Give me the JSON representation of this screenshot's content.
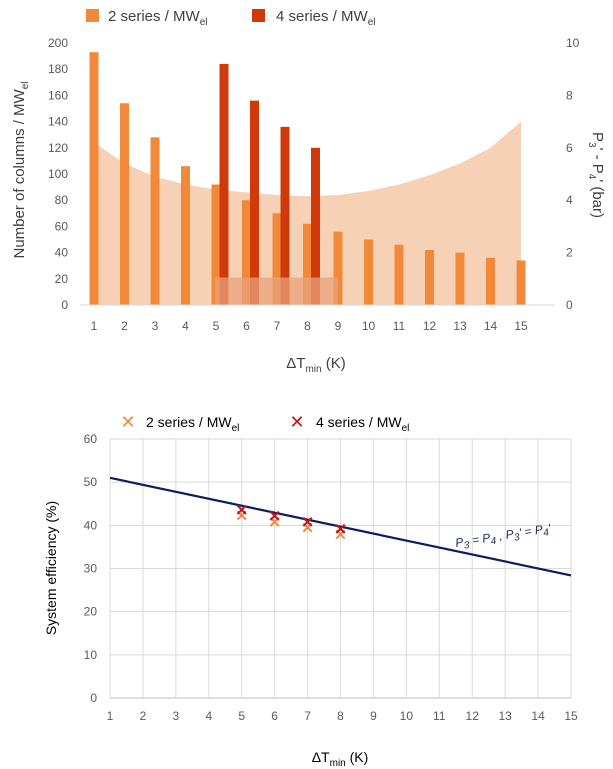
{
  "chart_data": [
    {
      "type": "bar",
      "legend_position": "top",
      "x": [
        1,
        2,
        3,
        4,
        5,
        6,
        7,
        8,
        9,
        10,
        11,
        12,
        13,
        14,
        15
      ],
      "series": [
        {
          "name": "2 series / MW",
          "name_sub": "el",
          "color": "#f08a3a",
          "values": [
            193,
            154,
            128,
            106,
            92,
            80,
            70,
            62,
            56,
            50,
            46,
            42,
            40,
            36,
            34
          ]
        },
        {
          "name": "4 series / MW",
          "name_sub": "el",
          "color": "#d03a0a",
          "x": [
            5,
            6,
            7,
            8
          ],
          "values": [
            184,
            156,
            136,
            120
          ]
        }
      ],
      "overlay_bars": {
        "x": [
          5,
          6,
          7,
          8
        ],
        "values": [
          21,
          21,
          21,
          21
        ],
        "color": "#e9a07a"
      },
      "pressure_area": {
        "x": [
          1,
          2,
          3,
          4,
          5,
          6,
          7,
          8,
          9,
          10,
          11,
          12,
          13,
          14,
          15
        ],
        "y2": [
          6.2,
          5.4,
          4.9,
          4.6,
          4.4,
          4.3,
          4.2,
          4.15,
          4.2,
          4.35,
          4.6,
          4.95,
          5.4,
          6.0,
          7.0
        ],
        "color": "#f6c9a8"
      },
      "xlabel": "ΔT",
      "xlabel_sub": "min",
      "xlabel_unit": " (K)",
      "ylabel": "Number of columns / MW",
      "ylabel_sub": "el",
      "y2label": "P",
      "y2label_sub1": "3",
      "y2label_mid": "' - P",
      "y2label_sub2": "4",
      "y2label_unit": "' (bar)",
      "ylim": [
        0,
        200
      ],
      "yticks": [
        0,
        20,
        40,
        60,
        80,
        100,
        120,
        140,
        160,
        180,
        200
      ],
      "y2lim": [
        0,
        10
      ],
      "y2ticks": [
        0,
        2,
        4,
        6,
        8,
        10
      ],
      "grid": false
    },
    {
      "type": "scatter",
      "legend_position": "top",
      "series": [
        {
          "name": "2 series / MW",
          "name_sub": "el",
          "color": "#f08a3a",
          "x": [
            5,
            6,
            7,
            8
          ],
          "y": [
            42.3,
            40.8,
            39.5,
            37.9
          ]
        },
        {
          "name": "4 series / MW",
          "name_sub": "el",
          "color": "#c0141e",
          "x": [
            5,
            6,
            7,
            8
          ],
          "y": [
            43.6,
            42.2,
            40.8,
            39.2
          ]
        }
      ],
      "line": {
        "x": [
          1,
          15
        ],
        "y": [
          51,
          28.4
        ],
        "color": "#0b1f5e"
      },
      "annotation": {
        "p3": "P",
        "s3": "3",
        "eq1": " = P",
        "s4": "4",
        "sep": " , P",
        "s3b": "3",
        "eq2": "' = P",
        "s4b": "4",
        "end": "'"
      },
      "xlabel": "ΔT",
      "xlabel_sub": "min",
      "xlabel_unit": " (K)",
      "ylabel": "System efficiency (%)",
      "xlim": [
        1,
        15
      ],
      "xticks": [
        1,
        2,
        3,
        4,
        5,
        6,
        7,
        8,
        9,
        10,
        11,
        12,
        13,
        14,
        15
      ],
      "ylim": [
        0,
        60
      ],
      "yticks": [
        0,
        10,
        20,
        30,
        40,
        50,
        60
      ],
      "grid": true
    }
  ]
}
